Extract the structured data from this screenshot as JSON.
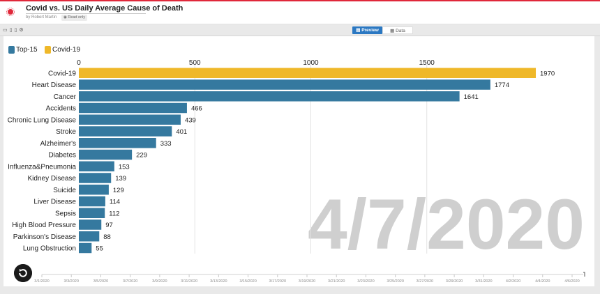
{
  "header": {
    "title": "Covid vs. US Daily Average Cause of Death",
    "byline": "by Robert Martin",
    "readonly_label": "Read only"
  },
  "toolbar": {
    "preview_label": "Preview",
    "data_label": "Data"
  },
  "icons": [
    "logo-icon",
    "desktop-icon",
    "tablet-icon",
    "mobile-icon",
    "settings-icon",
    "preview-icon",
    "data-table-icon",
    "eye-icon",
    "replay-icon"
  ],
  "colors": {
    "top15": "#35799f",
    "covid": "#efb829",
    "watermark": "#cfcfcf",
    "accent": "#e0283a"
  },
  "legend": [
    {
      "label": "Top-15",
      "color": "#35799f"
    },
    {
      "label": "Covid-19",
      "color": "#efb829"
    }
  ],
  "chart_data": {
    "type": "bar",
    "orientation": "horizontal",
    "categories": [
      "Covid-19",
      "Heart Disease",
      "Cancer",
      "Accidents",
      "Chronic Lung Disease",
      "Stroke",
      "Alzheimer's",
      "Diabetes",
      "Influenza&Pneumonia",
      "Kidney Disease",
      "Suicide",
      "Liver Disease",
      "Sepsis",
      "High Blood Pressure",
      "Parkinson's Disease",
      "Lung Obstruction"
    ],
    "values": [
      1970,
      1774,
      1641,
      466,
      439,
      401,
      333,
      229,
      153,
      139,
      129,
      114,
      112,
      97,
      88,
      55
    ],
    "groups": [
      "Covid-19",
      "Top-15",
      "Top-15",
      "Top-15",
      "Top-15",
      "Top-15",
      "Top-15",
      "Top-15",
      "Top-15",
      "Top-15",
      "Top-15",
      "Top-15",
      "Top-15",
      "Top-15",
      "Top-15",
      "Top-15"
    ],
    "xticks": [
      0,
      500,
      1000,
      1500
    ],
    "xlim": [
      0,
      2000
    ],
    "grid": true,
    "legend_position": "top-left",
    "current_date": "4/7/2020",
    "timeline_labels": [
      "3/1/2020",
      "3/3/2020",
      "3/5/2020",
      "3/7/2020",
      "3/9/2020",
      "3/11/2020",
      "3/13/2020",
      "3/15/2020",
      "3/17/2020",
      "3/19/2020",
      "3/21/2020",
      "3/23/2020",
      "3/25/2020",
      "3/27/2020",
      "3/29/2020",
      "3/31/2020",
      "4/2/2020",
      "4/4/2020",
      "4/6/2020"
    ]
  }
}
